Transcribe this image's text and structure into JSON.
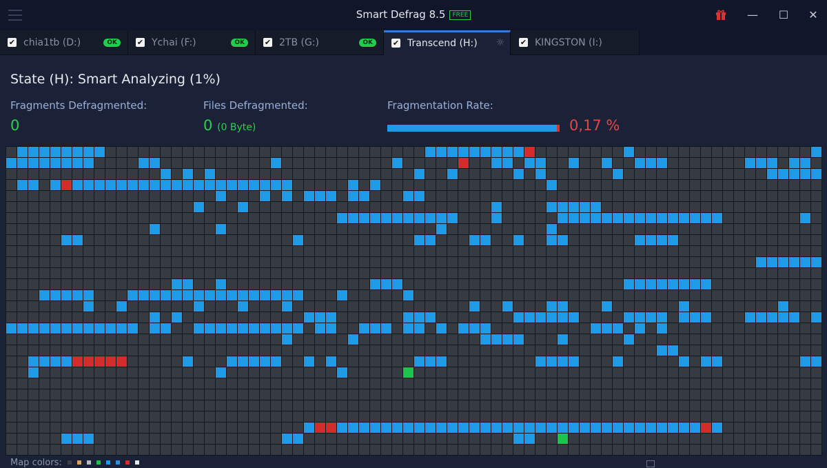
{
  "app": {
    "title": "Smart Defrag 8.5",
    "badge": "FREE",
    "accent": "#3a78d8"
  },
  "window_controls": {
    "gift_icon": "gift-icon",
    "minimize": "—",
    "maximize": "☐",
    "close": "✕"
  },
  "tabs": [
    {
      "label": "chia1tb (D:)",
      "checked": true,
      "status": "OK"
    },
    {
      "label": "Ychai (F:)",
      "checked": true,
      "status": "OK"
    },
    {
      "label": "2TB (G:)",
      "checked": true,
      "status": "OK"
    },
    {
      "label": "Transcend (H:)",
      "checked": true,
      "status": "analyzing",
      "active": true
    },
    {
      "label": "KINGSTON (I:)",
      "checked": true,
      "status": ""
    }
  ],
  "state": "State (H): Smart Analyzing (1%)",
  "stats": {
    "fragments_label": "Fragments Defragmented:",
    "fragments_value": "0",
    "files_label": "Files Defragmented:",
    "files_value": "0",
    "files_size": "(0 Byte)",
    "rate_label": "Fragmentation Rate:",
    "rate_value": "0,17 %"
  },
  "legend": {
    "label": "Map colors:",
    "colors": [
      "#3a3f46",
      "#e0a060",
      "#b8bcc4",
      "#1dc44c",
      "#1e9be6",
      "#2a90d8",
      "#d32c2c",
      "#e8e8e8"
    ]
  },
  "map": {
    "columns": 74,
    "rows": 28,
    "colors": {
      "b": "#1e9be6",
      "r": "#d32c2c",
      "g": "#1dc44c",
      "empty": "#363b42"
    },
    "runs": [
      [
        [
          1,
          8,
          "b"
        ],
        [
          38,
          46,
          "b"
        ],
        [
          47,
          47,
          "r"
        ],
        [
          56,
          56,
          "b"
        ],
        [
          73,
          73,
          "b"
        ]
      ],
      [
        [
          0,
          7,
          "b"
        ],
        [
          12,
          13,
          "b"
        ],
        [
          24,
          24,
          "b"
        ],
        [
          35,
          35,
          "b"
        ],
        [
          41,
          41,
          "r"
        ],
        [
          44,
          45,
          "b"
        ],
        [
          47,
          48,
          "b"
        ],
        [
          51,
          51,
          "b"
        ],
        [
          54,
          54,
          "b"
        ],
        [
          57,
          59,
          "b"
        ],
        [
          67,
          69,
          "b"
        ],
        [
          71,
          72,
          "b"
        ]
      ],
      [
        [
          14,
          14,
          "b"
        ],
        [
          16,
          16,
          "b"
        ],
        [
          18,
          18,
          "b"
        ],
        [
          37,
          37,
          "b"
        ],
        [
          40,
          40,
          "b"
        ],
        [
          46,
          46,
          "b"
        ],
        [
          48,
          48,
          "b"
        ],
        [
          55,
          55,
          "b"
        ],
        [
          69,
          73,
          "b"
        ]
      ],
      [
        [
          1,
          2,
          "b"
        ],
        [
          4,
          4,
          "b"
        ],
        [
          5,
          5,
          "r"
        ],
        [
          6,
          25,
          "b"
        ],
        [
          31,
          31,
          "b"
        ],
        [
          33,
          33,
          "b"
        ],
        [
          49,
          49,
          "b"
        ]
      ],
      [
        [
          19,
          19,
          "b"
        ],
        [
          23,
          23,
          "b"
        ],
        [
          25,
          25,
          "b"
        ],
        [
          27,
          29,
          "b"
        ],
        [
          31,
          32,
          "b"
        ],
        [
          36,
          37,
          "b"
        ]
      ],
      [
        [
          17,
          17,
          "b"
        ],
        [
          21,
          21,
          "b"
        ],
        [
          44,
          44,
          "b"
        ],
        [
          49,
          53,
          "b"
        ]
      ],
      [
        [
          30,
          40,
          "b"
        ],
        [
          44,
          44,
          "b"
        ],
        [
          50,
          64,
          "b"
        ],
        [
          72,
          72,
          "b"
        ]
      ],
      [
        [
          13,
          13,
          "b"
        ],
        [
          19,
          19,
          "b"
        ],
        [
          39,
          39,
          "b"
        ],
        [
          49,
          49,
          "b"
        ]
      ],
      [
        [
          5,
          6,
          "b"
        ],
        [
          26,
          26,
          "b"
        ],
        [
          37,
          38,
          "b"
        ],
        [
          42,
          43,
          "b"
        ],
        [
          46,
          46,
          "b"
        ],
        [
          49,
          50,
          "b"
        ],
        [
          57,
          60,
          "b"
        ]
      ],
      [],
      [
        [
          68,
          73,
          "b"
        ]
      ],
      [],
      [
        [
          15,
          16,
          "b"
        ],
        [
          19,
          19,
          "b"
        ],
        [
          33,
          35,
          "b"
        ],
        [
          56,
          63,
          "b"
        ]
      ],
      [
        [
          3,
          7,
          "b"
        ],
        [
          11,
          26,
          "b"
        ],
        [
          30,
          30,
          "b"
        ],
        [
          36,
          36,
          "b"
        ]
      ],
      [
        [
          7,
          7,
          "b"
        ],
        [
          10,
          10,
          "b"
        ],
        [
          17,
          17,
          "b"
        ],
        [
          21,
          21,
          "b"
        ],
        [
          25,
          25,
          "b"
        ],
        [
          42,
          42,
          "b"
        ],
        [
          45,
          45,
          "b"
        ],
        [
          49,
          50,
          "b"
        ],
        [
          54,
          54,
          "b"
        ],
        [
          61,
          61,
          "b"
        ],
        [
          70,
          70,
          "b"
        ]
      ],
      [
        [
          13,
          13,
          "b"
        ],
        [
          15,
          15,
          "b"
        ],
        [
          27,
          29,
          "b"
        ],
        [
          36,
          38,
          "b"
        ],
        [
          46,
          51,
          "b"
        ],
        [
          56,
          59,
          "b"
        ],
        [
          61,
          63,
          "b"
        ],
        [
          67,
          71,
          "b"
        ],
        [
          73,
          73,
          "b"
        ]
      ],
      [
        [
          0,
          11,
          "b"
        ],
        [
          13,
          14,
          "b"
        ],
        [
          17,
          26,
          "b"
        ],
        [
          28,
          29,
          "b"
        ],
        [
          32,
          34,
          "b"
        ],
        [
          36,
          37,
          "b"
        ],
        [
          39,
          39,
          "b"
        ],
        [
          41,
          43,
          "b"
        ],
        [
          53,
          55,
          "b"
        ],
        [
          57,
          57,
          "b"
        ],
        [
          59,
          59,
          "b"
        ]
      ],
      [
        [
          25,
          25,
          "b"
        ],
        [
          31,
          31,
          "b"
        ],
        [
          43,
          46,
          "b"
        ],
        [
          50,
          50,
          "b"
        ],
        [
          56,
          56,
          "b"
        ]
      ],
      [
        [
          59,
          60,
          "b"
        ]
      ],
      [
        [
          2,
          5,
          "b"
        ],
        [
          6,
          10,
          "r"
        ],
        [
          16,
          16,
          "b"
        ],
        [
          20,
          24,
          "b"
        ],
        [
          27,
          27,
          "b"
        ],
        [
          29,
          29,
          "b"
        ],
        [
          37,
          39,
          "b"
        ],
        [
          48,
          51,
          "b"
        ],
        [
          55,
          55,
          "b"
        ],
        [
          61,
          61,
          "b"
        ],
        [
          63,
          64,
          "b"
        ],
        [
          72,
          73,
          "b"
        ]
      ],
      [
        [
          2,
          2,
          "b"
        ],
        [
          19,
          19,
          "b"
        ],
        [
          30,
          30,
          "b"
        ],
        [
          36,
          36,
          "g"
        ]
      ],
      [],
      [],
      [],
      [],
      [
        [
          27,
          27,
          "b"
        ],
        [
          28,
          29,
          "r"
        ],
        [
          30,
          62,
          "b"
        ],
        [
          63,
          63,
          "r"
        ],
        [
          64,
          64,
          "b"
        ]
      ],
      [
        [
          5,
          7,
          "b"
        ],
        [
          25,
          26,
          "b"
        ],
        [
          46,
          47,
          "b"
        ],
        [
          50,
          50,
          "g"
        ]
      ],
      []
    ]
  }
}
